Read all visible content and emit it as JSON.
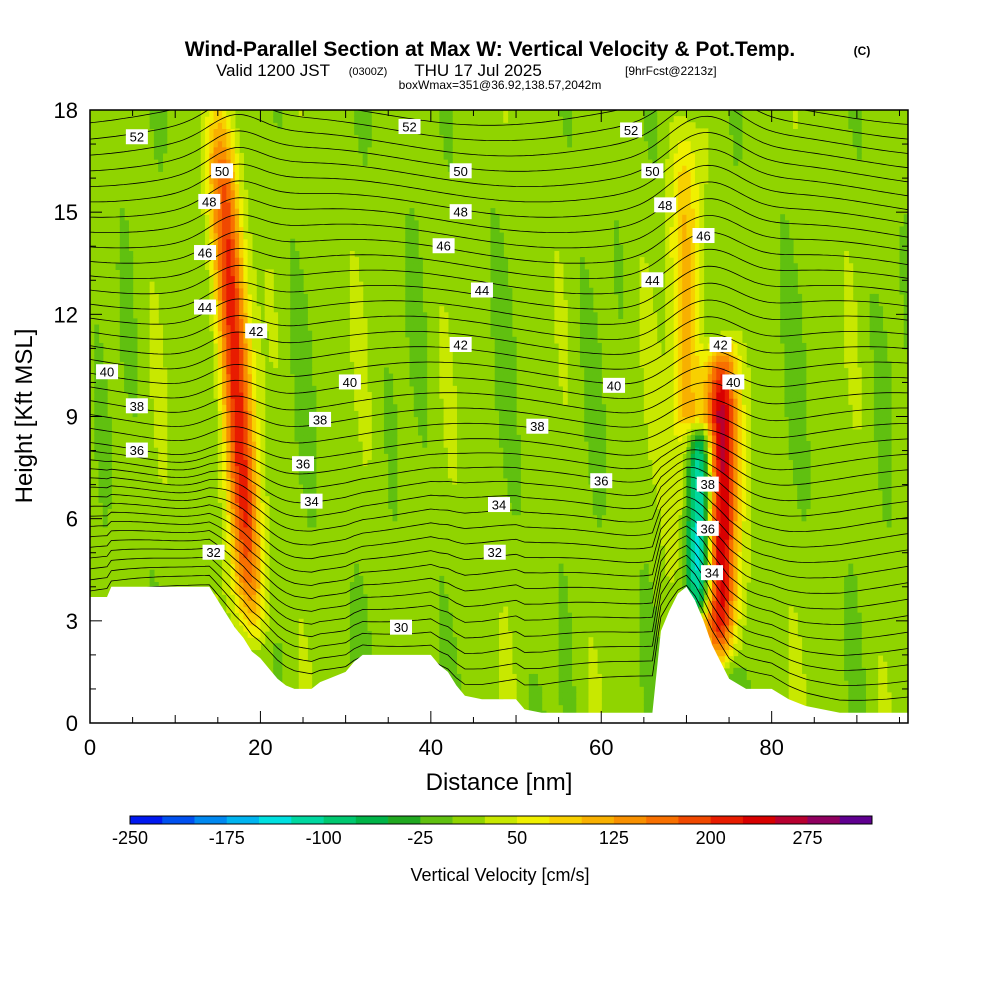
{
  "header": {
    "title": "Wind-Parallel Section at Max W: Vertical Velocity & Pot.Temp.",
    "title_mark": "(C)",
    "valid_prefix": "Valid 1200 JST",
    "valid_utc": "(0300Z)",
    "valid_date": "THU 17 Jul 2025",
    "forecast": "[9hrFcst@2213z]",
    "box_info": "boxWmax=351@36.92,138.57,2042m"
  },
  "chart_data": {
    "type": "heatmap",
    "xlabel": "Distance [nm]",
    "ylabel": "Height [Kft MSL]",
    "xlim": [
      0,
      96
    ],
    "ylim": [
      0,
      18
    ],
    "x_ticks": [
      "0",
      "20",
      "40",
      "60",
      "80"
    ],
    "y_ticks": [
      "0",
      "3",
      "6",
      "9",
      "12",
      "15",
      "18"
    ],
    "colorbar": {
      "title": "Vertical Velocity [cm/s]",
      "levels": [
        -250,
        -225,
        -200,
        -175,
        -150,
        -125,
        -100,
        -75,
        -50,
        -25,
        0,
        25,
        50,
        75,
        100,
        125,
        150,
        175,
        200,
        225,
        250,
        275,
        300
      ],
      "tick_labels": [
        "-250",
        "-175",
        "-100",
        "-25",
        "50",
        "125",
        "200",
        "275"
      ],
      "colors": [
        "#0018f0",
        "#0050f0",
        "#0088f0",
        "#00b4f0",
        "#00e0e0",
        "#00d8a0",
        "#00c870",
        "#00b448",
        "#20a820",
        "#60c010",
        "#90d400",
        "#c8e800",
        "#f0f000",
        "#f8d000",
        "#f8b000",
        "#f89000",
        "#f87000",
        "#f04800",
        "#e81c00",
        "#d80000",
        "#b80030",
        "#900060",
        "#600090"
      ]
    },
    "updraft_cores": [
      {
        "x": 17,
        "y_top": 17.5,
        "y_bottom": 3,
        "peak_w": 200
      },
      {
        "x": 74,
        "y_top": 10.5,
        "y_bottom": 2.5,
        "peak_w": 275
      },
      {
        "x": 70,
        "y_top": 17,
        "y_bottom": 4,
        "peak_w": 100
      }
    ],
    "downdraft_cores": [
      {
        "x": 71.5,
        "y_top": 8,
        "y_bottom": 4,
        "peak_w": -225
      }
    ],
    "terrain_kft": [
      [
        0,
        3.7
      ],
      [
        2,
        3.7
      ],
      [
        2.5,
        4.0
      ],
      [
        14,
        4.0
      ],
      [
        15,
        3.6
      ],
      [
        16,
        3.2
      ],
      [
        17,
        2.8
      ],
      [
        18,
        2.5
      ],
      [
        19,
        2.1
      ],
      [
        20,
        1.9
      ],
      [
        21,
        1.6
      ],
      [
        22,
        1.3
      ],
      [
        23,
        1.1
      ],
      [
        24,
        1.0
      ],
      [
        26,
        1.0
      ],
      [
        27,
        1.2
      ],
      [
        28,
        1.3
      ],
      [
        30,
        1.5
      ],
      [
        31,
        1.8
      ],
      [
        32,
        2.0
      ],
      [
        40,
        2.0
      ],
      [
        41,
        1.7
      ],
      [
        42,
        1.5
      ],
      [
        43,
        1.1
      ],
      [
        44,
        0.8
      ],
      [
        46,
        0.7
      ],
      [
        50,
        0.7
      ],
      [
        51,
        0.4
      ],
      [
        53,
        0.3
      ],
      [
        66,
        0.3
      ],
      [
        67,
        2.7
      ],
      [
        68,
        3.3
      ],
      [
        69,
        3.8
      ],
      [
        70,
        4.0
      ],
      [
        71,
        3.6
      ],
      [
        72,
        3.0
      ],
      [
        73,
        2.3
      ],
      [
        74,
        1.8
      ],
      [
        75,
        1.3
      ],
      [
        77,
        1.0
      ],
      [
        80,
        1.0
      ],
      [
        82,
        0.7
      ],
      [
        84,
        0.5
      ],
      [
        86,
        0.4
      ],
      [
        88,
        0.3
      ],
      [
        96,
        0.3
      ]
    ],
    "contour_labels": [
      {
        "text": "52",
        "x": 5.5,
        "y": 17.2
      },
      {
        "text": "52",
        "x": 37.5,
        "y": 17.5
      },
      {
        "text": "52",
        "x": 63.5,
        "y": 17.4
      },
      {
        "text": "50",
        "x": 15.5,
        "y": 16.2
      },
      {
        "text": "50",
        "x": 43.5,
        "y": 16.2
      },
      {
        "text": "50",
        "x": 66.0,
        "y": 16.2
      },
      {
        "text": "48",
        "x": 14.0,
        "y": 15.3
      },
      {
        "text": "48",
        "x": 43.5,
        "y": 15.0
      },
      {
        "text": "48",
        "x": 67.5,
        "y": 15.2
      },
      {
        "text": "46",
        "x": 13.5,
        "y": 13.8
      },
      {
        "text": "46",
        "x": 41.5,
        "y": 14.0
      },
      {
        "text": "46",
        "x": 72.0,
        "y": 14.3
      },
      {
        "text": "44",
        "x": 13.5,
        "y": 12.2
      },
      {
        "text": "44",
        "x": 46.0,
        "y": 12.7
      },
      {
        "text": "44",
        "x": 66.0,
        "y": 13.0
      },
      {
        "text": "42",
        "x": 19.5,
        "y": 11.5
      },
      {
        "text": "42",
        "x": 43.5,
        "y": 11.1
      },
      {
        "text": "42",
        "x": 74.0,
        "y": 11.1
      },
      {
        "text": "40",
        "x": 2.0,
        "y": 10.3
      },
      {
        "text": "40",
        "x": 30.5,
        "y": 10.0
      },
      {
        "text": "40",
        "x": 61.5,
        "y": 9.9
      },
      {
        "text": "40",
        "x": 75.5,
        "y": 10.0
      },
      {
        "text": "38",
        "x": 5.5,
        "y": 9.3
      },
      {
        "text": "38",
        "x": 27.0,
        "y": 8.9
      },
      {
        "text": "38",
        "x": 52.5,
        "y": 8.7
      },
      {
        "text": "38",
        "x": 72.5,
        "y": 7.0
      },
      {
        "text": "36",
        "x": 5.5,
        "y": 8.0
      },
      {
        "text": "36",
        "x": 25.0,
        "y": 7.6
      },
      {
        "text": "36",
        "x": 60.0,
        "y": 7.1
      },
      {
        "text": "36",
        "x": 72.5,
        "y": 5.7
      },
      {
        "text": "34",
        "x": 26.0,
        "y": 6.5
      },
      {
        "text": "34",
        "x": 48.0,
        "y": 6.4
      },
      {
        "text": "34",
        "x": 73.0,
        "y": 4.4
      },
      {
        "text": "32",
        "x": 14.5,
        "y": 5.0
      },
      {
        "text": "32",
        "x": 47.5,
        "y": 5.0
      },
      {
        "text": "30",
        "x": 36.5,
        "y": 2.8
      }
    ]
  }
}
